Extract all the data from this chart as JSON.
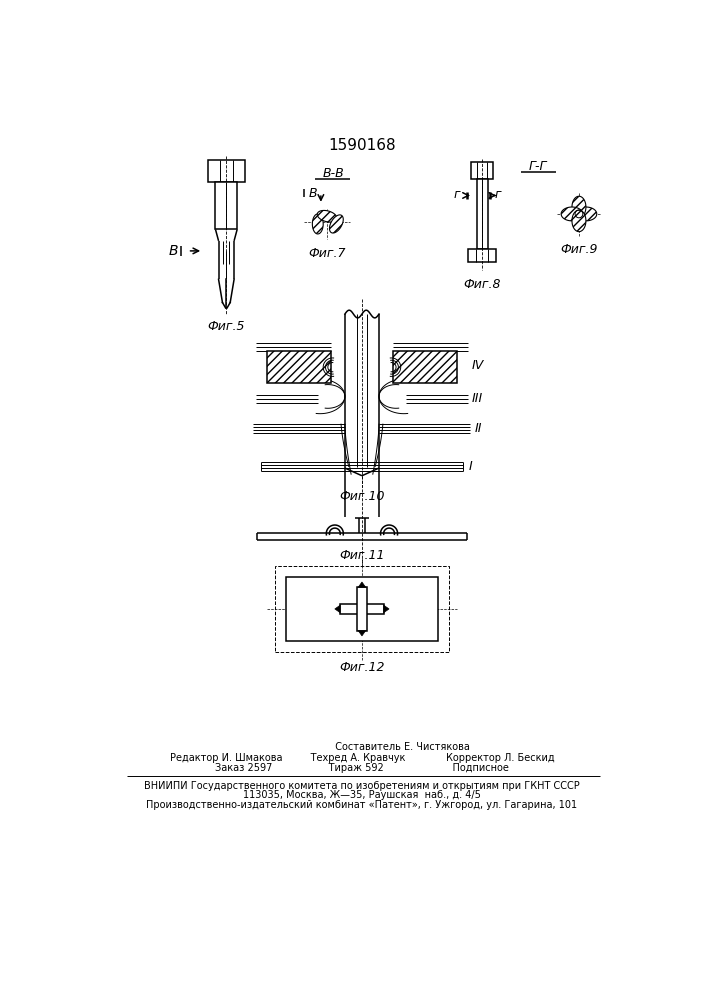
{
  "title": "1590168",
  "bg_color": "#ffffff",
  "line_color": "#000000",
  "footer_lines": [
    "                          Составитель Е. Чистякова",
    "Редактор И. Шмакова         Техред А. Кравчук             Корректор Л. Бескид",
    "Заказ 2597                  Тираж 592                      Подписное",
    "ВНИИПИ Государственного комитета по изобретениям и открытиям при ГКНТ СССР",
    "113035, Москва, Ж—35, Раушская  наб., д. 4/5",
    "Производственно-издательский комбинат «Патент», г. Ужгород, ул. Гагарина, 101"
  ]
}
